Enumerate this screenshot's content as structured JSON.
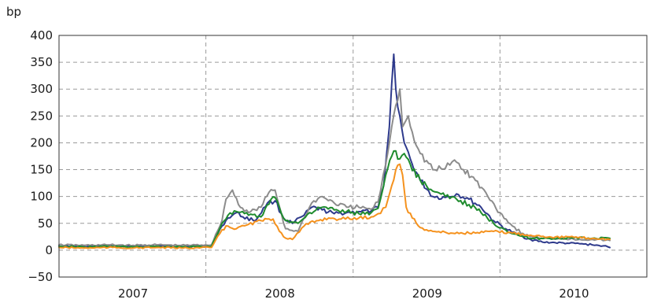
{
  "chart_data": {
    "type": "line",
    "ylabel": "bp",
    "ylim": [
      -50,
      400
    ],
    "yticks": [
      -50,
      0,
      50,
      100,
      150,
      200,
      250,
      300,
      350,
      400
    ],
    "xlim": [
      "2006-07-01",
      "2010-07-01"
    ],
    "xtick_labels": [
      "2007",
      "2008",
      "2009",
      "2010"
    ],
    "xtick_dates": [
      "2007-01-01",
      "2008-01-01",
      "2009-01-01",
      "2010-01-01"
    ],
    "year_dividers": [
      "2007-07-01",
      "2008-07-01",
      "2009-07-01"
    ],
    "grid": true,
    "series": [
      {
        "color": "#2e3a8c",
        "points": [
          [
            "2006-07-01",
            8
          ],
          [
            "2006-09-01",
            7
          ],
          [
            "2006-11-01",
            8
          ],
          [
            "2007-01-01",
            7
          ],
          [
            "2007-03-01",
            8
          ],
          [
            "2007-05-01",
            7
          ],
          [
            "2007-07-15",
            8
          ],
          [
            "2007-08-10",
            45
          ],
          [
            "2007-08-25",
            60
          ],
          [
            "2007-09-15",
            70
          ],
          [
            "2007-10-01",
            62
          ],
          [
            "2007-11-01",
            55
          ],
          [
            "2007-12-01",
            88
          ],
          [
            "2007-12-20",
            92
          ],
          [
            "2008-01-10",
            60
          ],
          [
            "2008-02-01",
            50
          ],
          [
            "2008-03-01",
            65
          ],
          [
            "2008-03-20",
            80
          ],
          [
            "2008-04-15",
            75
          ],
          [
            "2008-05-15",
            68
          ],
          [
            "2008-06-15",
            70
          ],
          [
            "2008-07-15",
            72
          ],
          [
            "2008-08-15",
            73
          ],
          [
            "2008-09-01",
            80
          ],
          [
            "2008-09-15",
            120
          ],
          [
            "2008-09-29",
            230
          ],
          [
            "2008-10-05",
            310
          ],
          [
            "2008-10-10",
            365
          ],
          [
            "2008-10-15",
            300
          ],
          [
            "2008-10-25",
            250
          ],
          [
            "2008-11-05",
            200
          ],
          [
            "2008-11-25",
            160
          ],
          [
            "2008-12-15",
            130
          ],
          [
            "2009-01-15",
            100
          ],
          [
            "2009-02-15",
            98
          ],
          [
            "2009-03-15",
            105
          ],
          [
            "2009-04-15",
            95
          ],
          [
            "2009-05-15",
            80
          ],
          [
            "2009-06-15",
            55
          ],
          [
            "2009-07-15",
            40
          ],
          [
            "2009-08-15",
            28
          ],
          [
            "2009-09-15",
            20
          ],
          [
            "2009-10-15",
            15
          ],
          [
            "2009-11-15",
            14
          ],
          [
            "2009-12-15",
            13
          ],
          [
            "2010-01-15",
            12
          ],
          [
            "2010-02-15",
            10
          ],
          [
            "2010-03-15",
            8
          ],
          [
            "2010-03-31",
            5
          ]
        ]
      },
      {
        "color": "#8c8c8c",
        "points": [
          [
            "2006-07-01",
            10
          ],
          [
            "2006-09-01",
            9
          ],
          [
            "2006-11-01",
            10
          ],
          [
            "2007-01-01",
            9
          ],
          [
            "2007-03-01",
            10
          ],
          [
            "2007-05-01",
            9
          ],
          [
            "2007-07-15",
            10
          ],
          [
            "2007-08-10",
            55
          ],
          [
            "2007-08-20",
            95
          ],
          [
            "2007-09-05",
            112
          ],
          [
            "2007-09-20",
            85
          ],
          [
            "2007-10-15",
            70
          ],
          [
            "2007-11-15",
            80
          ],
          [
            "2007-12-05",
            108
          ],
          [
            "2007-12-20",
            112
          ],
          [
            "2008-01-15",
            40
          ],
          [
            "2008-02-15",
            35
          ],
          [
            "2008-03-01",
            60
          ],
          [
            "2008-03-20",
            88
          ],
          [
            "2008-04-15",
            100
          ],
          [
            "2008-05-15",
            88
          ],
          [
            "2008-06-15",
            80
          ],
          [
            "2008-07-15",
            80
          ],
          [
            "2008-08-15",
            76
          ],
          [
            "2008-09-01",
            90
          ],
          [
            "2008-09-20",
            160
          ],
          [
            "2008-10-05",
            230
          ],
          [
            "2008-10-15",
            270
          ],
          [
            "2008-10-25",
            300
          ],
          [
            "2008-11-01",
            230
          ],
          [
            "2008-11-15",
            250
          ],
          [
            "2008-11-25",
            220
          ],
          [
            "2008-12-15",
            180
          ],
          [
            "2009-01-15",
            150
          ],
          [
            "2009-02-15",
            152
          ],
          [
            "2009-03-10",
            168
          ],
          [
            "2009-04-01",
            150
          ],
          [
            "2009-05-01",
            130
          ],
          [
            "2009-06-01",
            100
          ],
          [
            "2009-07-01",
            70
          ],
          [
            "2009-08-01",
            45
          ],
          [
            "2009-09-01",
            28
          ],
          [
            "2009-10-15",
            22
          ],
          [
            "2009-12-01",
            22
          ],
          [
            "2010-01-15",
            20
          ],
          [
            "2010-02-15",
            20
          ],
          [
            "2010-03-31",
            18
          ]
        ]
      },
      {
        "color": "#1f8c2e",
        "points": [
          [
            "2006-07-01",
            7
          ],
          [
            "2006-09-01",
            6
          ],
          [
            "2006-11-01",
            7
          ],
          [
            "2007-01-01",
            6
          ],
          [
            "2007-03-01",
            7
          ],
          [
            "2007-05-01",
            6
          ],
          [
            "2007-07-15",
            7
          ],
          [
            "2007-08-10",
            50
          ],
          [
            "2007-08-25",
            65
          ],
          [
            "2007-09-15",
            72
          ],
          [
            "2007-10-15",
            65
          ],
          [
            "2007-11-15",
            62
          ],
          [
            "2007-12-10",
            95
          ],
          [
            "2007-12-20",
            98
          ],
          [
            "2008-01-15",
            55
          ],
          [
            "2008-02-15",
            50
          ],
          [
            "2008-03-15",
            70
          ],
          [
            "2008-04-15",
            80
          ],
          [
            "2008-05-15",
            75
          ],
          [
            "2008-06-15",
            72
          ],
          [
            "2008-07-15",
            68
          ],
          [
            "2008-08-15",
            70
          ],
          [
            "2008-09-01",
            78
          ],
          [
            "2008-09-20",
            140
          ],
          [
            "2008-10-05",
            175
          ],
          [
            "2008-10-15",
            185
          ],
          [
            "2008-10-25",
            170
          ],
          [
            "2008-11-05",
            180
          ],
          [
            "2008-11-20",
            160
          ],
          [
            "2008-12-15",
            130
          ],
          [
            "2009-01-15",
            110
          ],
          [
            "2009-02-15",
            100
          ],
          [
            "2009-03-15",
            95
          ],
          [
            "2009-04-15",
            85
          ],
          [
            "2009-05-15",
            70
          ],
          [
            "2009-06-15",
            50
          ],
          [
            "2009-07-15",
            38
          ],
          [
            "2009-08-15",
            28
          ],
          [
            "2009-09-15",
            22
          ],
          [
            "2009-11-01",
            22
          ],
          [
            "2010-01-01",
            23
          ],
          [
            "2010-02-15",
            22
          ],
          [
            "2010-03-31",
            22
          ]
        ]
      },
      {
        "color": "#f5921e",
        "points": [
          [
            "2006-07-01",
            5
          ],
          [
            "2006-09-01",
            4
          ],
          [
            "2006-11-01",
            5
          ],
          [
            "2007-01-01",
            4
          ],
          [
            "2007-03-01",
            5
          ],
          [
            "2007-05-01",
            4
          ],
          [
            "2007-07-15",
            5
          ],
          [
            "2007-08-10",
            38
          ],
          [
            "2007-08-25",
            45
          ],
          [
            "2007-09-15",
            40
          ],
          [
            "2007-10-15",
            48
          ],
          [
            "2007-11-15",
            55
          ],
          [
            "2007-12-15",
            58
          ],
          [
            "2008-01-10",
            25
          ],
          [
            "2008-02-01",
            20
          ],
          [
            "2008-03-01",
            45
          ],
          [
            "2008-04-01",
            55
          ],
          [
            "2008-05-01",
            60
          ],
          [
            "2008-06-01",
            58
          ],
          [
            "2008-07-15",
            60
          ],
          [
            "2008-08-15",
            62
          ],
          [
            "2008-09-01",
            68
          ],
          [
            "2008-09-20",
            80
          ],
          [
            "2008-10-05",
            120
          ],
          [
            "2008-10-15",
            150
          ],
          [
            "2008-10-25",
            160
          ],
          [
            "2008-11-01",
            140
          ],
          [
            "2008-11-10",
            80
          ],
          [
            "2008-11-25",
            60
          ],
          [
            "2008-12-15",
            42
          ],
          [
            "2009-01-15",
            35
          ],
          [
            "2009-03-01",
            32
          ],
          [
            "2009-05-01",
            32
          ],
          [
            "2009-06-15",
            35
          ],
          [
            "2009-08-01",
            32
          ],
          [
            "2009-09-15",
            28
          ],
          [
            "2009-11-01",
            25
          ],
          [
            "2010-01-01",
            24
          ],
          [
            "2010-02-15",
            22
          ],
          [
            "2010-03-31",
            20
          ]
        ]
      }
    ]
  }
}
